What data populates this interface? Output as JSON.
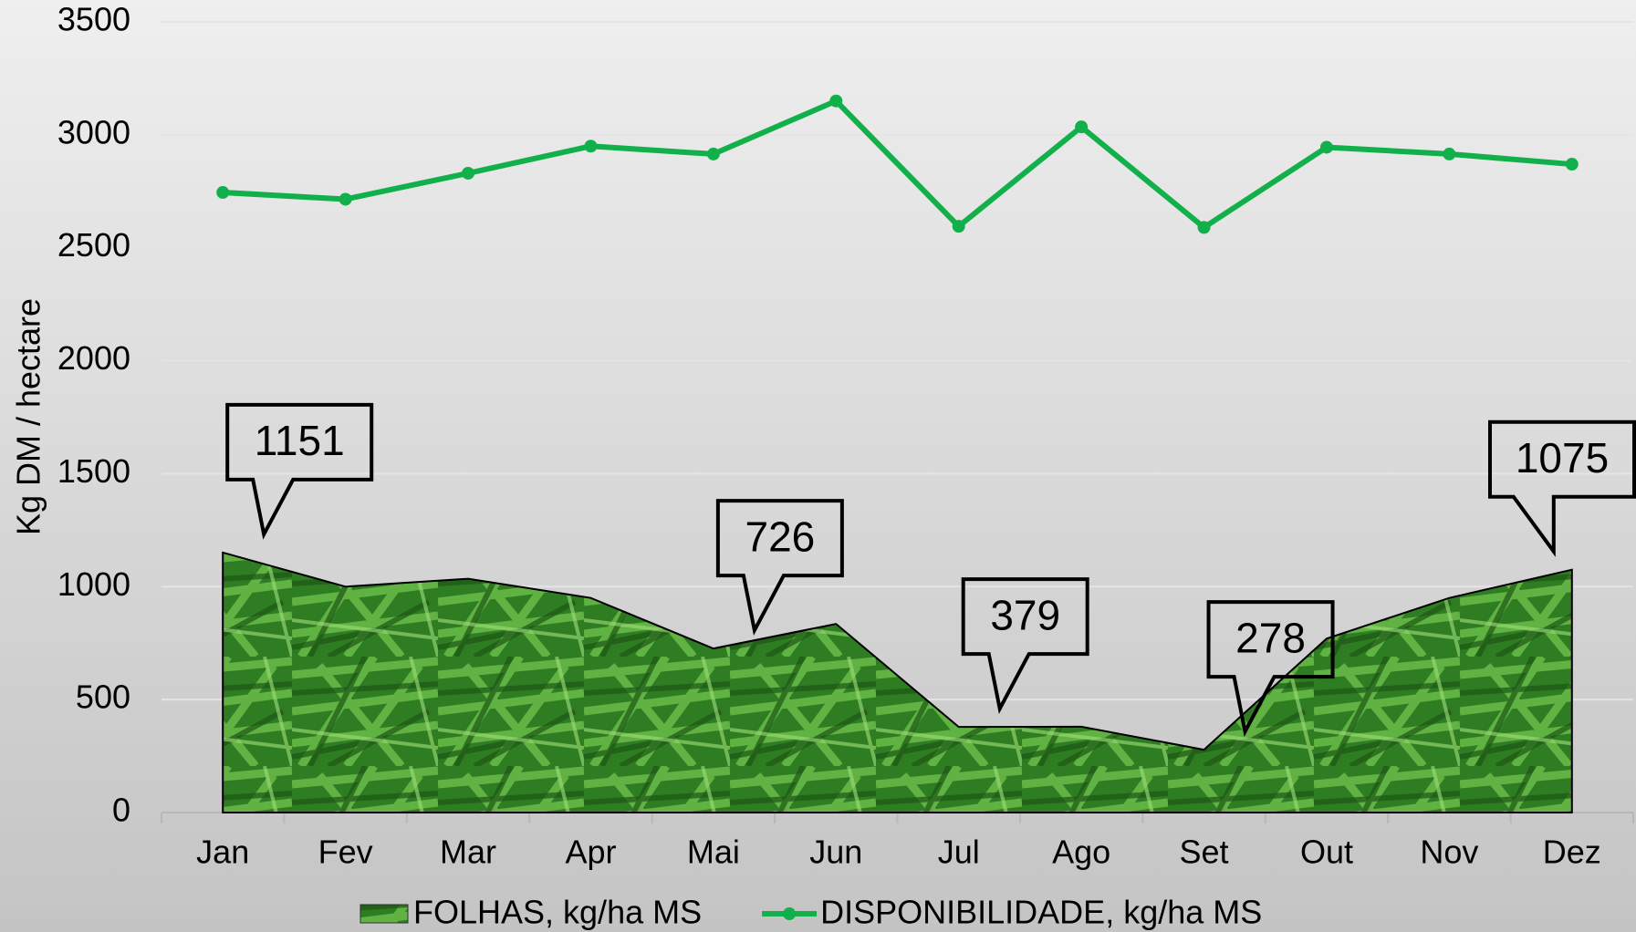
{
  "chart_data": {
    "type": "line_area",
    "y_label": "Kg DM / hectare",
    "categories": [
      "Jan",
      "Fev",
      "Mar",
      "Apr",
      "Mai",
      "Jun",
      "Jul",
      "Ago",
      "Set",
      "Out",
      "Nov",
      "Dez"
    ],
    "series": [
      {
        "name": "FOLHAS, kg/ha MS",
        "type": "area",
        "color": "#3f9a2e",
        "values": [
          1151,
          1000,
          1035,
          950,
          726,
          835,
          379,
          380,
          278,
          770,
          950,
          1075
        ],
        "value_labels": [
          "1151",
          null,
          null,
          null,
          "726",
          null,
          "379",
          null,
          "278",
          null,
          null,
          "1075"
        ]
      },
      {
        "name": "DISPONIBILIDADE, kg/ha MS",
        "type": "line",
        "color": "#12b04a",
        "values": [
          2745,
          2715,
          2830,
          2950,
          2915,
          3150,
          2595,
          3035,
          2590,
          2945,
          2915,
          2870
        ]
      }
    ],
    "ylim": [
      0,
      3500
    ],
    "yticks": [
      0,
      500,
      1000,
      1500,
      2000,
      2500,
      3000,
      3500
    ],
    "grid": true,
    "legend": "bottom"
  }
}
